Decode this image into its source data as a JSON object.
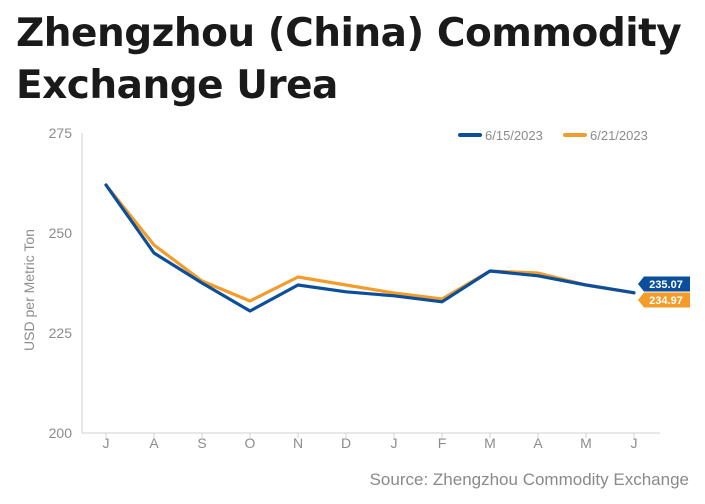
{
  "title": "Zhengzhou (China) Commodity Exchange Urea",
  "source": "Source: Zhengzhou Commodity Exchange",
  "chart_data": {
    "type": "line",
    "title": "Zhengzhou (China) Commodity Exchange Urea",
    "xlabel": "",
    "ylabel": "USD per Metric Ton",
    "categories": [
      "J",
      "A",
      "S",
      "O",
      "N",
      "D",
      "J",
      "F",
      "M",
      "A",
      "M",
      "J"
    ],
    "ylim": [
      200,
      275
    ],
    "yticks": [
      "200",
      "225",
      "250",
      "275"
    ],
    "grid": false,
    "legend_position": "top-right",
    "series": [
      {
        "name": "6/21/2023",
        "color": "#f39c2a",
        "values": [
          262,
          247,
          238,
          233,
          239,
          237,
          235,
          233.5,
          240.5,
          240,
          237,
          234.97
        ],
        "end_label": "234.97"
      },
      {
        "name": "6/15/2023",
        "color": "#0b4f9c",
        "values": [
          262,
          245,
          237.5,
          230.5,
          237,
          235.3,
          234.3,
          232.8,
          240.5,
          239.3,
          237,
          235.07
        ],
        "end_label": "235.07"
      }
    ]
  }
}
